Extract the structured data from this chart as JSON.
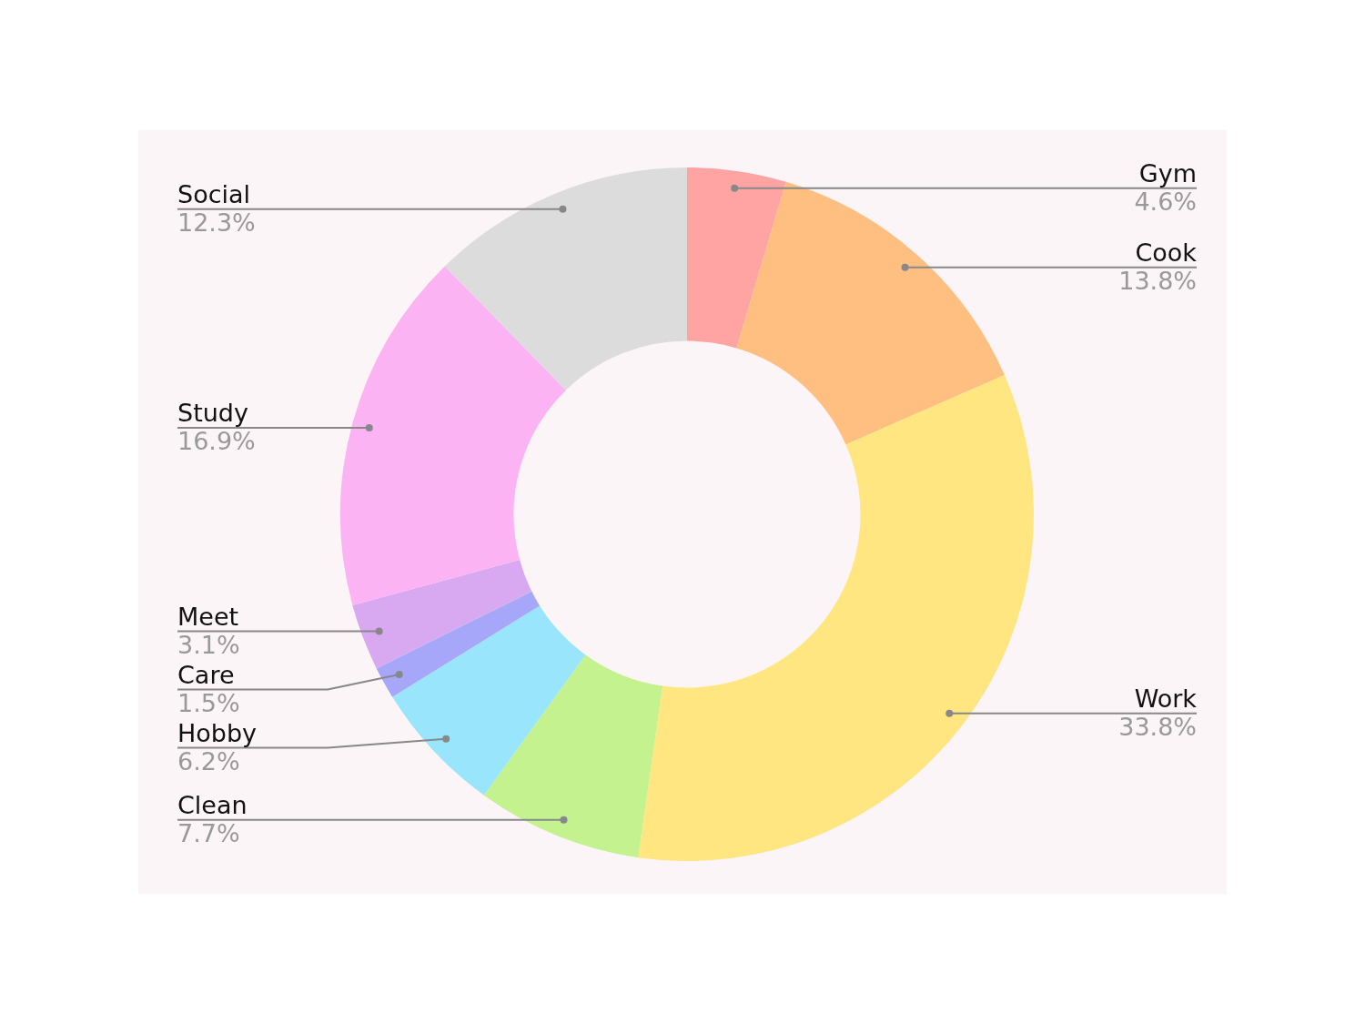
{
  "chart_data": {
    "type": "donut",
    "categories": [
      "Gym",
      "Cook",
      "Work",
      "Clean",
      "Hobby",
      "Care",
      "Meet",
      "Study",
      "Social"
    ],
    "values": [
      4.6,
      13.8,
      33.8,
      7.7,
      6.2,
      1.5,
      3.1,
      16.9,
      12.3
    ],
    "value_labels": [
      "4.6%",
      "13.8%",
      "33.8%",
      "7.7%",
      "6.2%",
      "1.5%",
      "3.1%",
      "16.9%",
      "12.3%"
    ],
    "colors": [
      "#ffa3a3",
      "#ffbf80",
      "#ffe680",
      "#c4f28e",
      "#99e6fc",
      "#a7a7fa",
      "#d8a8f0",
      "#fbb3f3",
      "#dcdcdc"
    ],
    "legend": false
  }
}
